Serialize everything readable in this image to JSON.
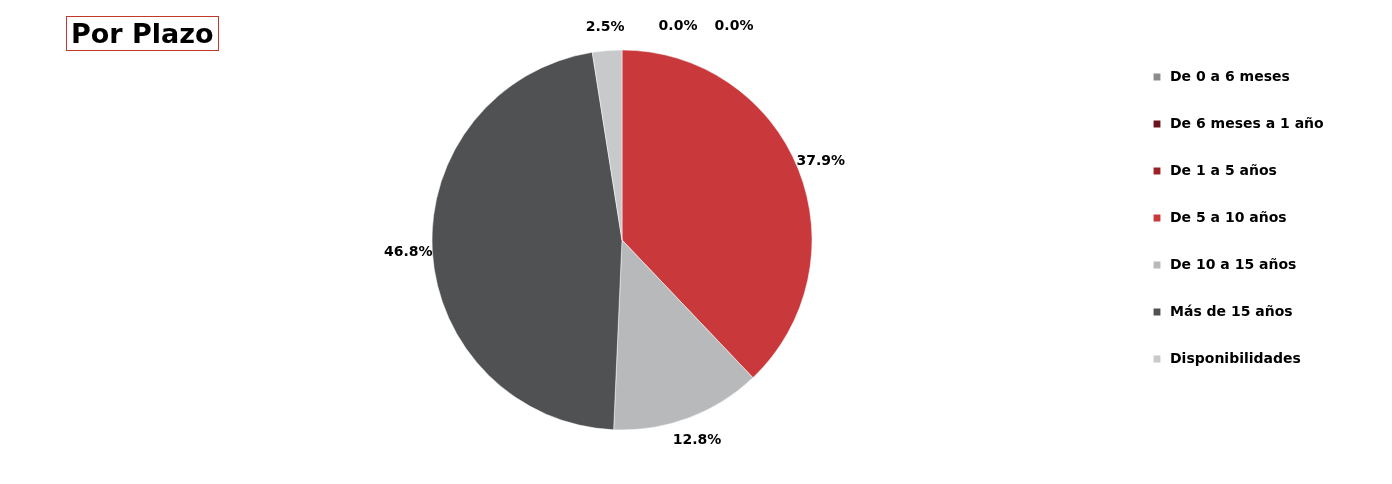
{
  "chart_data": {
    "type": "pie",
    "title": "Por Plazo",
    "categories": [
      "De 0 a 6 meses",
      "De 6 meses a 1 año",
      "De 1 a 5 años",
      "De 5 a 10 años",
      "De 10 a 15 años",
      "Más de 15 años",
      "Disponibilidades"
    ],
    "values": [
      0.0,
      0.0,
      0.0,
      37.9,
      12.8,
      46.8,
      2.5
    ],
    "colors": [
      "#8c8c8c",
      "#6b1220",
      "#9b2226",
      "#c9383a",
      "#b8b9bb",
      "#505153",
      "#c8c9cb"
    ],
    "value_labels": [
      "0.0%",
      "0.0%",
      null,
      "37.9%",
      "12.8%",
      "46.8%",
      "2.5%"
    ],
    "legend": "right"
  }
}
